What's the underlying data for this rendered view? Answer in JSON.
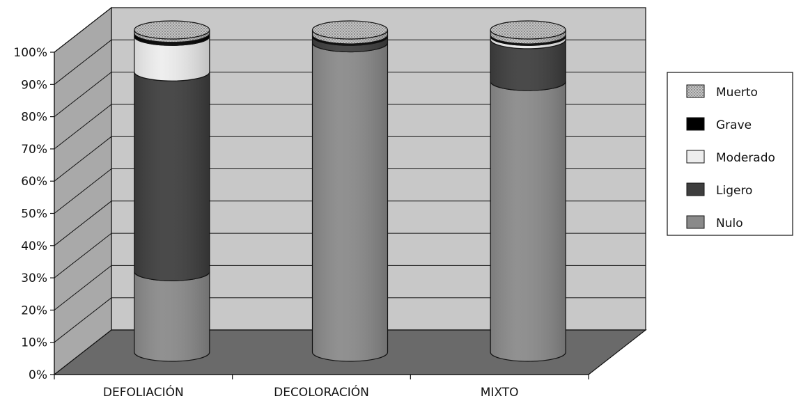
{
  "chart_data": {
    "type": "bar",
    "stacked": true,
    "percent": true,
    "three_d": true,
    "title": "",
    "xlabel": "",
    "ylabel": "",
    "ylim": [
      0,
      100
    ],
    "yticks": [
      "0%",
      "10%",
      "20%",
      "30%",
      "40%",
      "50%",
      "60%",
      "70%",
      "80%",
      "90%",
      "100%"
    ],
    "categories": [
      "DEFOLIACIÓN",
      "DECOLORACIÓN",
      "MIXTO"
    ],
    "grid": true,
    "legend_position": "right",
    "series": [
      {
        "name": "Nulo",
        "values": [
          25,
          96,
          84
        ],
        "color": "#8a8a8a"
      },
      {
        "name": "Ligero",
        "values": [
          62,
          2,
          13
        ],
        "color": "#3e3e3e"
      },
      {
        "name": "Moderado",
        "values": [
          11,
          0,
          1
        ],
        "color": "#ededed"
      },
      {
        "name": "Grave",
        "values": [
          1,
          0.5,
          0.5
        ],
        "color": "#000000"
      },
      {
        "name": "Muerto",
        "values": [
          1,
          1.5,
          1.5
        ],
        "color": "#b5b5b5",
        "pattern": "dotted"
      }
    ],
    "legend_order": [
      "Muerto",
      "Grave",
      "Moderado",
      "Ligero",
      "Nulo"
    ]
  }
}
